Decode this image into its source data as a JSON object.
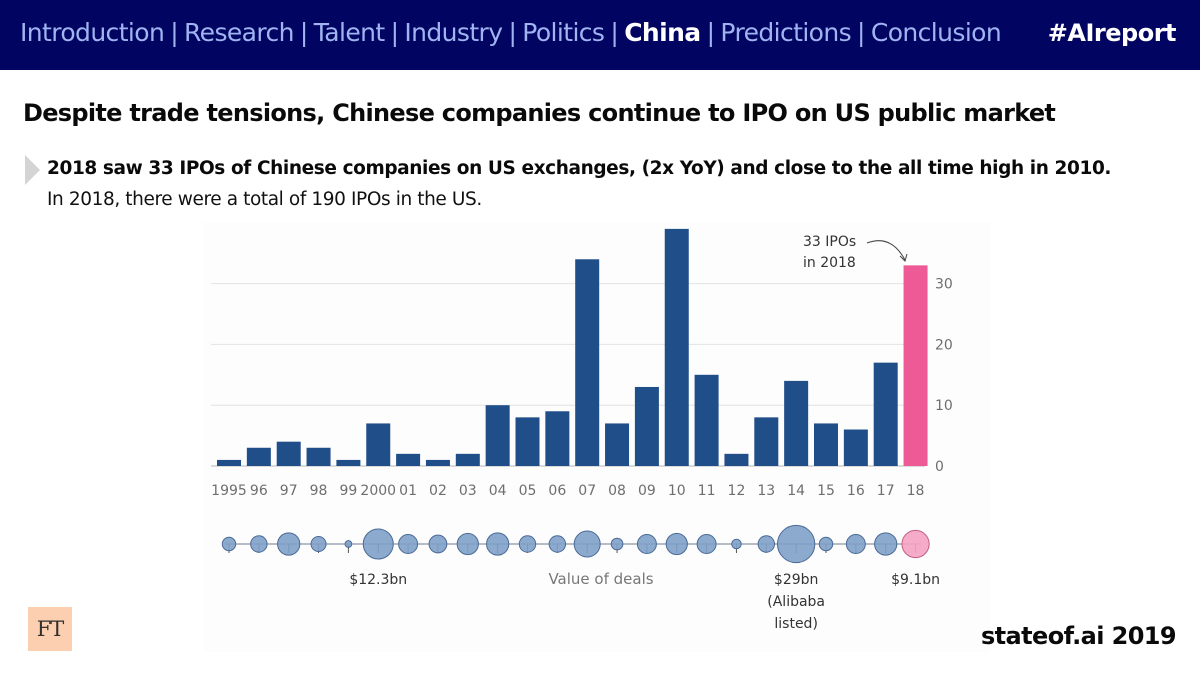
{
  "nav": {
    "items": [
      {
        "label": "Introduction",
        "active": false
      },
      {
        "label": "Research",
        "active": false
      },
      {
        "label": "Talent",
        "active": false
      },
      {
        "label": "Industry",
        "active": false
      },
      {
        "label": "Politics",
        "active": false
      },
      {
        "label": "China",
        "active": true
      },
      {
        "label": "Predictions",
        "active": false
      },
      {
        "label": "Conclusion",
        "active": false
      }
    ],
    "separator": "|",
    "hashtag": "#AIreport"
  },
  "slide": {
    "title": "Despite trade tensions, Chinese companies continue to IPO on US public market",
    "bullet_bold": "2018 saw 33 IPOs of Chinese companies on US exchanges, (2x YoY) and close to the all time high in 2010.",
    "bullet_normal": "In 2018, there were a total of 190 IPOs in the US."
  },
  "footer": {
    "source_logo": "FT",
    "brand": "stateof.ai 2019"
  },
  "colors": {
    "nav_bg": "#020462",
    "bar": "#1f4e89",
    "highlight": "#ee5a96",
    "bubble": "#7fa0c9",
    "bubble_highlight": "#f5a3c2"
  },
  "chart_data": {
    "type": "bar",
    "title": "",
    "xlabel": "",
    "ylabel": "",
    "categories": [
      "1995",
      "96",
      "97",
      "98",
      "99",
      "2000",
      "01",
      "02",
      "03",
      "04",
      "05",
      "06",
      "07",
      "08",
      "09",
      "10",
      "11",
      "12",
      "13",
      "14",
      "15",
      "16",
      "17",
      "18"
    ],
    "values": [
      1,
      3,
      4,
      3,
      1,
      7,
      2,
      1,
      2,
      10,
      8,
      9,
      34,
      7,
      13,
      39,
      15,
      2,
      8,
      14,
      7,
      6,
      17,
      33
    ],
    "highlight_index": 23,
    "ylim": [
      0,
      40
    ],
    "yticks": [
      0,
      10,
      20,
      30
    ],
    "y_axis_side": "right",
    "grid": true,
    "annotation": {
      "lines": [
        "33 IPOs",
        "in 2018"
      ],
      "target": "18"
    },
    "deal_values": {
      "label": "Value of deals",
      "unit": "$bn",
      "relative_sizes": [
        0.2,
        0.3,
        0.55,
        0.25,
        0.05,
        1.0,
        0.4,
        0.35,
        0.5,
        0.55,
        0.3,
        0.3,
        0.75,
        0.15,
        0.4,
        0.5,
        0.4,
        0.1,
        0.3,
        1.55,
        0.2,
        0.4,
        0.55,
        0.82
      ],
      "labels": [
        {
          "category": "2000",
          "text": "$12.3bn"
        },
        {
          "category": "14",
          "text": "$29bn",
          "extra": [
            "(Alibaba",
            "listed)"
          ]
        },
        {
          "category": "18",
          "text": "$9.1bn"
        }
      ]
    }
  }
}
